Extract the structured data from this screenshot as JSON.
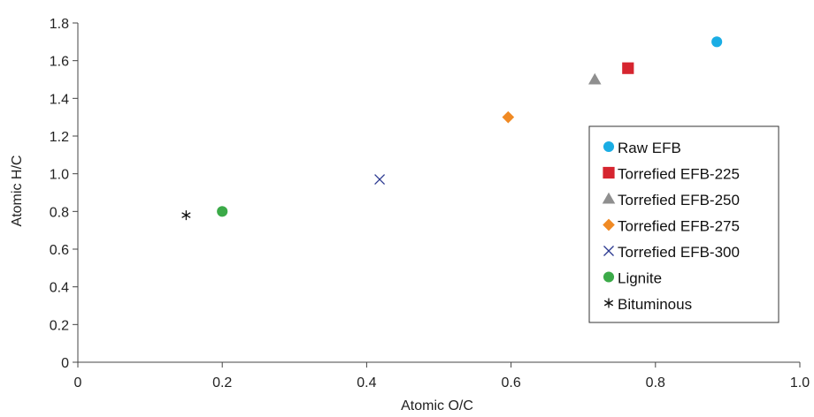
{
  "chart_data": {
    "type": "scatter",
    "title": "",
    "xlabel": "Atomic O/C",
    "ylabel": "Atomic H/C",
    "xlim": [
      0,
      1.0
    ],
    "ylim": [
      0,
      1.8
    ],
    "x_ticks": [
      "0",
      "0.2",
      "0.4",
      "0.6",
      "0.8",
      "1.0"
    ],
    "y_ticks": [
      "0",
      "0.2",
      "0.4",
      "0.6",
      "0.8",
      "1.0",
      "1.2",
      "1.4",
      "1.6",
      "1.8"
    ],
    "grid": false,
    "legend_position": "right",
    "series": [
      {
        "name": "Raw EFB",
        "marker": "circle",
        "color": "#1AADE4",
        "points": [
          {
            "x": 0.885,
            "y": 1.7
          }
        ]
      },
      {
        "name": "Torrefied EFB-225",
        "marker": "square",
        "color": "#D6252F",
        "points": [
          {
            "x": 0.762,
            "y": 1.56
          }
        ]
      },
      {
        "name": "Torrefied EFB-250",
        "marker": "triangle",
        "color": "#8F8F8F",
        "points": [
          {
            "x": 0.716,
            "y": 1.5
          }
        ]
      },
      {
        "name": "Torrefied EFB-275",
        "marker": "diamond",
        "color": "#F08A24",
        "points": [
          {
            "x": 0.596,
            "y": 1.3
          }
        ]
      },
      {
        "name": "Torrefied EFB-300",
        "marker": "x",
        "color": "#2B3990",
        "points": [
          {
            "x": 0.418,
            "y": 0.97
          }
        ]
      },
      {
        "name": "Lignite",
        "marker": "circle",
        "color": "#3BAA48",
        "points": [
          {
            "x": 0.2,
            "y": 0.8
          }
        ]
      },
      {
        "name": "Bituminous",
        "marker": "asterisk",
        "color": "#111111",
        "points": [
          {
            "x": 0.15,
            "y": 0.78
          }
        ]
      }
    ]
  }
}
